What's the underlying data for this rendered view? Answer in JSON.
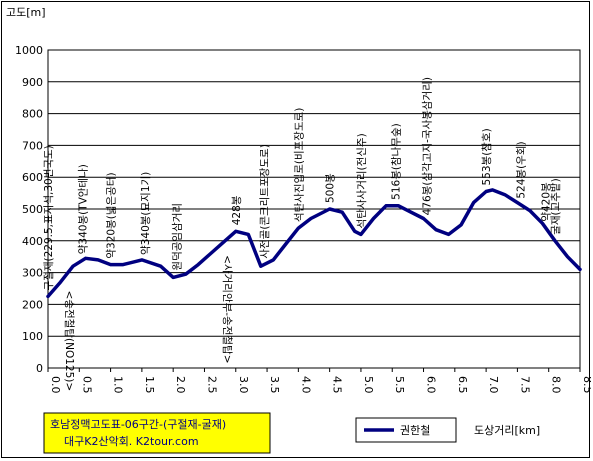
{
  "chart_data": {
    "type": "line",
    "ylabel": "고도[m]",
    "xlabel": "도상거리[km]",
    "xlim": [
      0,
      8.5
    ],
    "ylim": [
      0,
      1000
    ],
    "x_ticks": [
      "0.0",
      "0.5",
      "1.0",
      "1.5",
      "2.0",
      "2.5",
      "3.0",
      "3.5",
      "4.0",
      "4.5",
      "5.0",
      "5.5",
      "6.0",
      "6.5",
      "7.0",
      "7.5",
      "8.0",
      "8.5"
    ],
    "y_ticks": [
      "0",
      "100",
      "200",
      "300",
      "400",
      "500",
      "600",
      "700",
      "800",
      "900",
      "1000"
    ],
    "grid": true,
    "legend_position": "bottom-right",
    "series": [
      {
        "name": "권한철",
        "color": "#000080",
        "x": [
          0.0,
          0.2,
          0.4,
          0.6,
          0.8,
          1.0,
          1.2,
          1.5,
          1.8,
          2.0,
          2.2,
          2.4,
          2.6,
          2.8,
          3.0,
          3.2,
          3.4,
          3.6,
          3.8,
          4.0,
          4.2,
          4.5,
          4.7,
          4.9,
          5.0,
          5.2,
          5.4,
          5.6,
          5.8,
          6.0,
          6.2,
          6.4,
          6.6,
          6.8,
          7.0,
          7.1,
          7.3,
          7.5,
          7.7,
          7.9,
          8.1,
          8.3,
          8.5
        ],
        "values": [
          225,
          270,
          320,
          345,
          340,
          325,
          325,
          340,
          320,
          285,
          295,
          325,
          360,
          395,
          430,
          420,
          320,
          340,
          390,
          440,
          470,
          500,
          490,
          430,
          420,
          470,
          510,
          510,
          490,
          470,
          435,
          420,
          450,
          520,
          555,
          560,
          545,
          520,
          495,
          455,
          400,
          350,
          310
        ]
      }
    ],
    "annotations": [
      {
        "x": 0.0,
        "text": "구절재(229.5,표지석,30번국도)",
        "anchor": "left"
      },
      {
        "x": 0.55,
        "text": "약340봉(TV안테나)",
        "anchor": "left"
      },
      {
        "x": 1.0,
        "text": "약320봉(넓은공터)",
        "anchor": "left"
      },
      {
        "x": 1.55,
        "text": "약340봉(묘지1기)",
        "anchor": "left"
      },
      {
        "x": 2.05,
        "text": "원덕공임삼거리",
        "anchor": "left"
      },
      {
        "x": 3.0,
        "text": "428봉",
        "anchor": "left"
      },
      {
        "x": 3.45,
        "text": "사전골(콘크리트포장도로)",
        "anchor": "left"
      },
      {
        "x": 4.0,
        "text": "석탄사진입로(비포장도로)",
        "anchor": "left"
      },
      {
        "x": 4.5,
        "text": "500봉",
        "anchor": "left"
      },
      {
        "x": 5.0,
        "text": "석탄사사거리(전신주)",
        "anchor": "left"
      },
      {
        "x": 5.55,
        "text": "516봉(참나무숲)",
        "anchor": "left"
      },
      {
        "x": 6.05,
        "text": "476봉(삼각고지-국사봉삼거리)",
        "anchor": "left"
      },
      {
        "x": 7.0,
        "text": "553봉(참호)",
        "anchor": "left"
      },
      {
        "x": 7.55,
        "text": "524봉(우회)",
        "anchor": "left"
      },
      {
        "x": 7.95,
        "text": "약420봉",
        "anchor": "left"
      },
      {
        "x": 8.1,
        "text": "굴재(고추밭)",
        "anchor": "left"
      },
      {
        "x": 0.22,
        "text": "<송전철탑(NO125)>",
        "anchor": "below"
      },
      {
        "x": 2.75,
        "text": "<사거리안부-송전철탑>",
        "anchor": "below"
      }
    ]
  },
  "footer": {
    "title": "호남정맥고도표-06구간-(구절재-굴재)",
    "credit": "대구K2산악회. K2tour.com",
    "box_color": "#ffff00"
  },
  "legend": {
    "label": "권한철"
  }
}
